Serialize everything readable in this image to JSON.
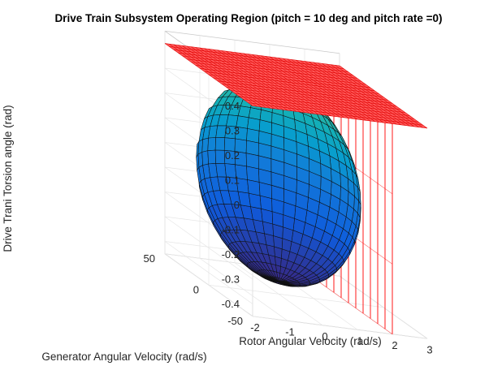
{
  "chart_data": {
    "type": "surface3d",
    "title": "Drive Train Subsystem Operating Region (pitch = 10 deg and pitch rate =0)",
    "xlabel": "Rotor Angular Velocity (rad/s)",
    "ylabel": "Generator Angular Velocity (rad/s)",
    "zlabel": "Drive Trani Torsion angle (rad)",
    "x_ticks": [
      "-2",
      "-1",
      "0",
      "1",
      "2",
      "3"
    ],
    "y_ticks": [
      "-50",
      "0",
      "50"
    ],
    "z_ticks": [
      "-0.4",
      "-0.3",
      "-0.2",
      "-0.1",
      "0",
      "0.1",
      "0.2",
      "0.3",
      "0.4"
    ],
    "xlim": [
      -2,
      3
    ],
    "ylim": [
      -50,
      50
    ],
    "zlim": [
      -0.45,
      0.45
    ],
    "surfaces": [
      {
        "kind": "ellipsoid",
        "colormap": "parula",
        "center": [
          0,
          0,
          0
        ],
        "radii": [
          2,
          50,
          0.4
        ]
      },
      {
        "kind": "plane",
        "color": "#ff0000",
        "z": 0.4
      },
      {
        "kind": "plane",
        "color": "#ff0000",
        "x": 2
      }
    ],
    "grid": true
  }
}
